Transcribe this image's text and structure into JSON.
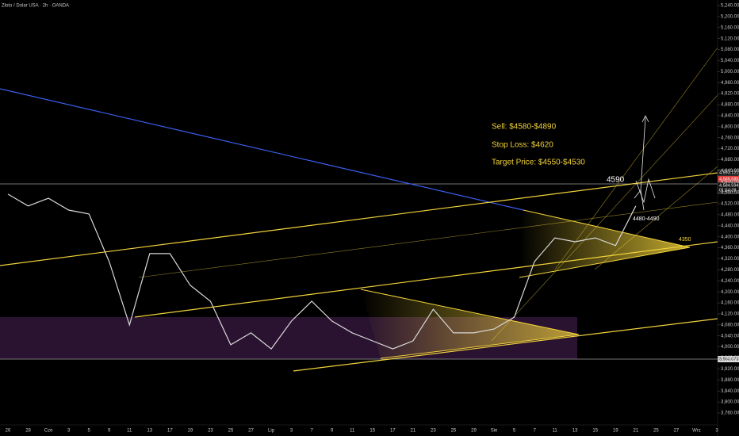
{
  "chart_data": {
    "type": "line",
    "title": "Złoto / Dolar USA · 2h · OANDA",
    "color": "#d8d8d8",
    "categories": [
      "26",
      "28",
      "Cze",
      "3",
      "5",
      "9",
      "11",
      "13",
      "17",
      "19",
      "23",
      "25",
      "27",
      "Lip",
      "3",
      "7",
      "9",
      "11",
      "15",
      "17",
      "21",
      "23",
      "25",
      "29",
      "Sie",
      "5",
      "7",
      "11",
      "13",
      "15",
      "19",
      "21",
      "25",
      "27",
      "Wrz",
      "3"
    ],
    "values": [
      4555,
      4512,
      4540,
      4497,
      4483,
      4310,
      4080,
      4339,
      4339,
      4224,
      4166,
      4008,
      4051,
      3993,
      4094,
      4166,
      4094,
      4051,
      4022,
      3993,
      4022,
      4137,
      4051,
      4051,
      4065,
      4108,
      4310,
      4396,
      4382,
      4396,
      4368,
      4512,
      null,
      null,
      null,
      null
    ],
    "ylim": [
      3760,
      5240
    ],
    "yticks": [
      {
        "value": 3760,
        "label": "3,760.000"
      },
      {
        "value": 3800,
        "label": "3,800.000"
      },
      {
        "value": 3840,
        "label": "3,840.000"
      },
      {
        "value": 3880,
        "label": "3,880.000"
      },
      {
        "value": 3920,
        "label": "3,920.000"
      },
      {
        "value": 3960,
        "label": "3,960.000"
      },
      {
        "value": 4000,
        "label": "4,000.000"
      },
      {
        "value": 4040,
        "label": "4,040.000"
      },
      {
        "value": 4080,
        "label": "4,080.000"
      },
      {
        "value": 4120,
        "label": "4,120.000"
      },
      {
        "value": 4160,
        "label": "4,160.000"
      },
      {
        "value": 4200,
        "label": "4,200.000"
      },
      {
        "value": 4240,
        "label": "4,240.000"
      },
      {
        "value": 4280,
        "label": "4,280.000"
      },
      {
        "value": 4320,
        "label": "4,320.000"
      },
      {
        "value": 4360,
        "label": "4,360.000"
      },
      {
        "value": 4400,
        "label": "4,400.000"
      },
      {
        "value": 4440,
        "label": "4,440.000"
      },
      {
        "value": 4480,
        "label": "4,480.000"
      },
      {
        "value": 4520,
        "label": "4,520.000"
      },
      {
        "value": 4560,
        "label": "4,560.000"
      },
      {
        "value": 4600,
        "label": "4,600.000"
      },
      {
        "value": 4640,
        "label": "4,640.000"
      },
      {
        "value": 4680,
        "label": "4,680.000"
      },
      {
        "value": 4720,
        "label": "4,720.000"
      },
      {
        "value": 4760,
        "label": "4,760.000"
      },
      {
        "value": 4800,
        "label": "4,800.000"
      },
      {
        "value": 4840,
        "label": "4,840.000"
      },
      {
        "value": 4880,
        "label": "4,880.000"
      },
      {
        "value": 4920,
        "label": "4,920.000"
      },
      {
        "value": 4960,
        "label": "4,960.000"
      },
      {
        "value": 5000,
        "label": "5,000.000"
      },
      {
        "value": 5040,
        "label": "5,040.000"
      },
      {
        "value": 5080,
        "label": "5,080.000"
      },
      {
        "value": 5120,
        "label": "5,120.000"
      },
      {
        "value": 5160,
        "label": "5,160.000"
      },
      {
        "value": 5200,
        "label": "5,200.000"
      },
      {
        "value": 5240,
        "label": "5,240.000"
      }
    ],
    "annotations": [
      "Sell: $4580-$4890",
      "Stop Loss: $4620",
      "Target Price: $4550-$4530",
      "4590",
      "4480-4490",
      "4350"
    ],
    "price_tags": [
      "4,593.121",
      "4,585.585",
      "4,584.594",
      "01:54:28",
      "3,960.073"
    ]
  }
}
